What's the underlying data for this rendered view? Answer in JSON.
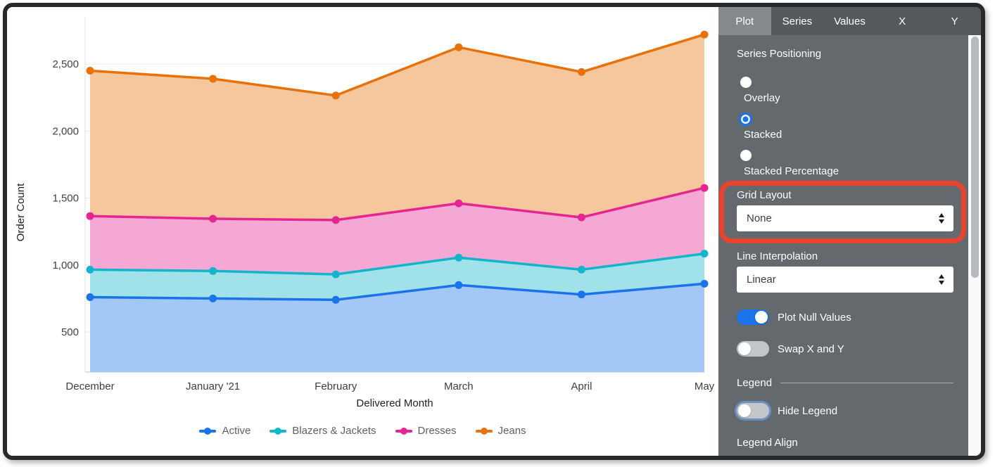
{
  "tabs": [
    {
      "label": "Plot",
      "active": true
    },
    {
      "label": "Series",
      "active": false
    },
    {
      "label": "Values",
      "active": false
    },
    {
      "label": "X",
      "active": false
    },
    {
      "label": "Y",
      "active": false
    }
  ],
  "panel": {
    "series_positioning": {
      "label": "Series Positioning",
      "options": [
        {
          "label": "Overlay",
          "selected": false
        },
        {
          "label": "Stacked",
          "selected": true
        },
        {
          "label": "Stacked Percentage",
          "selected": false
        }
      ]
    },
    "grid_layout": {
      "label": "Grid Layout",
      "value": "None",
      "highlighted": true,
      "highlight_color": "#e8432e"
    },
    "line_interpolation": {
      "label": "Line Interpolation",
      "value": "Linear"
    },
    "plot_null": {
      "label": "Plot Null Values",
      "on": true
    },
    "swap_xy": {
      "label": "Swap X and Y",
      "on": false
    },
    "legend_heading": "Legend",
    "hide_legend": {
      "label": "Hide Legend",
      "on": false,
      "focused": true
    },
    "legend_align_label": "Legend Align"
  },
  "chart_data": {
    "type": "area",
    "stacking": "stacked",
    "title": "",
    "xlabel": "Delivered Month",
    "ylabel": "Order Count",
    "categories": [
      "December",
      "January '21",
      "February",
      "March",
      "April",
      "May"
    ],
    "series": [
      {
        "name": "Active",
        "color": "#1a73e8",
        "fill": "#a3c7f6",
        "values": [
          760,
          750,
          740,
          850,
          780,
          860
        ]
      },
      {
        "name": "Blazers & Jackets",
        "color": "#12b5cb",
        "fill": "#a0e1ea",
        "values": [
          205,
          205,
          190,
          205,
          185,
          225
        ]
      },
      {
        "name": "Dresses",
        "color": "#e52592",
        "fill": "#f5a8d3",
        "values": [
          400,
          390,
          405,
          405,
          390,
          490
        ]
      },
      {
        "name": "Jeans",
        "color": "#e8710a",
        "fill": "#f6c69d",
        "values": [
          1085,
          1045,
          930,
          1165,
          1085,
          1145
        ]
      }
    ],
    "stacked_line_positions": {
      "Active": [
        760,
        750,
        740,
        850,
        780,
        860
      ],
      "Blazers & Jackets": [
        965,
        955,
        930,
        1055,
        965,
        1085
      ],
      "Dresses": [
        1365,
        1345,
        1335,
        1460,
        1355,
        1575
      ],
      "Jeans": [
        2450,
        2390,
        2265,
        2625,
        2440,
        2720
      ]
    },
    "y_ticks": [
      {
        "value": 500,
        "label": "500"
      },
      {
        "value": 1000,
        "label": "1,000"
      },
      {
        "value": 1500,
        "label": "1,500"
      },
      {
        "value": 2000,
        "label": "2,000"
      },
      {
        "value": 2500,
        "label": "2,500"
      }
    ],
    "grid": "horizontal",
    "legend_position": "bottom",
    "marker": "circle",
    "interpolation": "linear"
  }
}
